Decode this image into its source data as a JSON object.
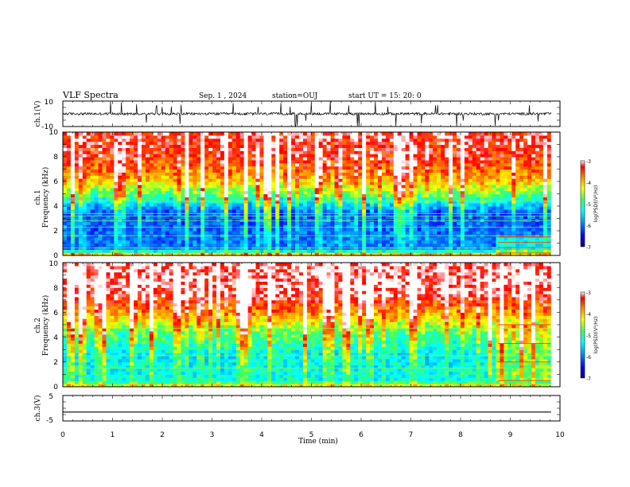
{
  "header": {
    "title": "VLF Spectra",
    "date": "Sep. 1 , 2024",
    "station": "station=OUJ",
    "start": "start UT = 15: 20: 0"
  },
  "chart_data": [
    {
      "type": "line",
      "id": "ch1-waveform",
      "ylabel": "ch.1(V)",
      "ylim": [
        -10,
        10
      ],
      "yticks": [
        "10",
        "-10"
      ],
      "xlim": [
        0,
        10
      ],
      "x_extent": [
        0,
        9.82
      ],
      "series": [
        {
          "values": [
            [
              0,
              0
            ],
            [
              9.82,
              0
            ]
          ]
        }
      ],
      "baseline": 0,
      "noise_amplitude": 1,
      "spike_amplitude": 10,
      "color": "#000000"
    },
    {
      "type": "heatmap",
      "id": "ch1-spectrogram",
      "ylabel_top": "ch.1",
      "ylabel": "Frequency (kHz)",
      "ylim": [
        0,
        10
      ],
      "yticks": [
        "0",
        "2",
        "4",
        "6",
        "8",
        "10"
      ],
      "xlim": [
        0,
        10
      ],
      "x_extent": [
        0,
        9.82
      ],
      "colorbar": {
        "label": "log(PSD)(V²/Hz)",
        "range": [
          -7,
          -3
        ],
        "ticks": [
          "-3",
          "-4",
          "-5",
          "-6",
          "-7"
        ]
      },
      "value_profile_by_frequency_khz": [
        [
          0,
          -3.5
        ],
        [
          0.5,
          -6
        ],
        [
          3.5,
          -6.3
        ],
        [
          5,
          -5
        ],
        [
          6.5,
          -4
        ],
        [
          8,
          -3.5
        ],
        [
          10,
          -3.3
        ]
      ],
      "horizontal_lines_khz": [
        0.6,
        1.6,
        2.3,
        2.8,
        3.2,
        3.4,
        4.4
      ],
      "late_band": {
        "x_start": 8.75,
        "freq_range_khz": [
          0.2,
          1.5
        ]
      }
    },
    {
      "type": "heatmap",
      "id": "ch2-spectrogram",
      "ylabel_top": "ch.2",
      "ylabel": "Frequency (kHz)",
      "ylim": [
        0,
        10
      ],
      "yticks": [
        "0",
        "2",
        "4",
        "6",
        "8",
        "10"
      ],
      "xlim": [
        0,
        10
      ],
      "x_extent": [
        0,
        9.82
      ],
      "colorbar": {
        "label": "log(PSD)(V²/Hz)",
        "range": [
          -7,
          -3
        ],
        "ticks": [
          "-3",
          "-4",
          "-5",
          "-6",
          "-7"
        ]
      },
      "value_profile_by_frequency_khz": [
        [
          0,
          -4
        ],
        [
          0.5,
          -5.3
        ],
        [
          2.5,
          -5.5
        ],
        [
          4.5,
          -5
        ],
        [
          6,
          -4
        ],
        [
          7.5,
          -3.3
        ],
        [
          10,
          -3.1
        ]
      ],
      "horizontal_lines_khz": [
        1.5,
        2.5,
        4.7
      ],
      "late_band": {
        "x_start": 8.75,
        "freq_range_khz": [
          0.5,
          5.0
        ]
      }
    },
    {
      "type": "line",
      "id": "ch3-waveform",
      "ylabel": "ch.3(V)",
      "ylim": [
        -5,
        5
      ],
      "yticks": [
        "5",
        "-5"
      ],
      "xlim": [
        0,
        10
      ],
      "x_extent": [
        0,
        9.82
      ],
      "xlabel": "Time (min)",
      "xticks": [
        "0",
        "1",
        "2",
        "3",
        "4",
        "5",
        "6",
        "7",
        "8",
        "9",
        "10"
      ],
      "series": [
        {
          "values": [
            [
              0,
              -1.5
            ],
            [
              9.82,
              -1.5
            ]
          ]
        }
      ],
      "color": "#000000"
    }
  ]
}
